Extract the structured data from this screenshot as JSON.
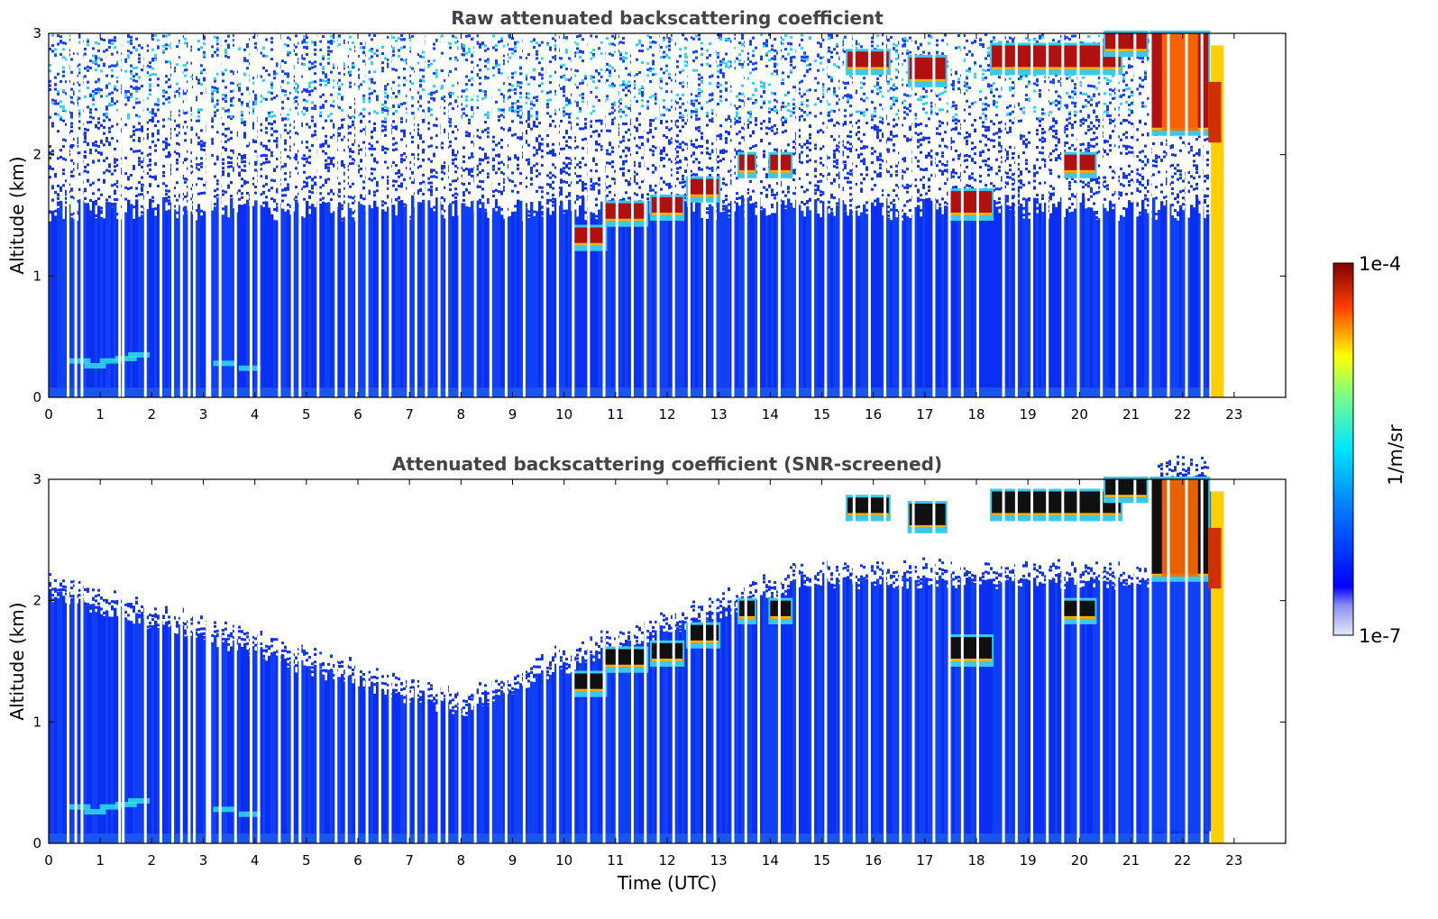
{
  "chart_data": [
    {
      "type": "heatmap",
      "title": "Raw attenuated backscattering coefficient",
      "xlabel": "",
      "ylabel": "Altitude (km)",
      "xlim": [
        0,
        24
      ],
      "ylim": [
        0,
        3
      ],
      "x_ticks": [
        "0",
        "1",
        "2",
        "3",
        "4",
        "5",
        "6",
        "7",
        "8",
        "9",
        "10",
        "11",
        "12",
        "13",
        "14",
        "15",
        "16",
        "17",
        "18",
        "19",
        "20",
        "21",
        "22",
        "23"
      ],
      "y_ticks": [
        "0",
        "1",
        "2",
        "3"
      ],
      "screened": false,
      "data_end_hour": 22.8,
      "cloud_layers": [
        {
          "t_start": 10.2,
          "t_end": 10.8,
          "base_km": 1.25,
          "top_km": 1.4
        },
        {
          "t_start": 10.8,
          "t_end": 11.6,
          "base_km": 1.45,
          "top_km": 1.6
        },
        {
          "t_start": 11.7,
          "t_end": 12.3,
          "base_km": 1.5,
          "top_km": 1.65
        },
        {
          "t_start": 12.4,
          "t_end": 13.0,
          "base_km": 1.65,
          "top_km": 1.8
        },
        {
          "t_start": 13.4,
          "t_end": 13.7,
          "base_km": 1.85,
          "top_km": 2.0
        },
        {
          "t_start": 14.0,
          "t_end": 14.4,
          "base_km": 1.85,
          "top_km": 2.0
        },
        {
          "t_start": 15.5,
          "t_end": 16.3,
          "base_km": 2.7,
          "top_km": 2.85
        },
        {
          "t_start": 16.7,
          "t_end": 17.4,
          "base_km": 2.6,
          "top_km": 2.8
        },
        {
          "t_start": 17.5,
          "t_end": 18.3,
          "base_km": 1.5,
          "top_km": 1.7
        },
        {
          "t_start": 18.3,
          "t_end": 20.8,
          "base_km": 2.7,
          "top_km": 2.9
        },
        {
          "t_start": 19.7,
          "t_end": 20.3,
          "base_km": 1.85,
          "top_km": 2.0
        },
        {
          "t_start": 20.5,
          "t_end": 21.3,
          "base_km": 2.85,
          "top_km": 3.0
        },
        {
          "t_start": 21.4,
          "t_end": 22.5,
          "base_km": 2.2,
          "top_km": 3.0
        }
      ],
      "aerosol_layer": {
        "t_start": 0.6,
        "t_end": 1.8,
        "alt_km": 0.28
      }
    },
    {
      "type": "heatmap",
      "title": "Attenuated backscattering coefficient (SNR-screened)",
      "xlabel": "Time (UTC)",
      "ylabel": "Altitude (km)",
      "xlim": [
        0,
        24
      ],
      "ylim": [
        0,
        3
      ],
      "x_ticks": [
        "0",
        "1",
        "2",
        "3",
        "4",
        "5",
        "6",
        "7",
        "8",
        "9",
        "10",
        "11",
        "12",
        "13",
        "14",
        "15",
        "16",
        "17",
        "18",
        "19",
        "20",
        "21",
        "22",
        "23"
      ],
      "y_ticks": [
        "0",
        "1",
        "2",
        "3"
      ],
      "screened": true,
      "data_end_hour": 22.8
    }
  ],
  "colorbar": {
    "label": "1/m/sr",
    "max_label": "1e-4",
    "min_label": "1e-7",
    "colors": [
      "#e6e6fa",
      "#0000ff",
      "#00ffff",
      "#ffff00",
      "#ff0000",
      "#800000"
    ]
  }
}
